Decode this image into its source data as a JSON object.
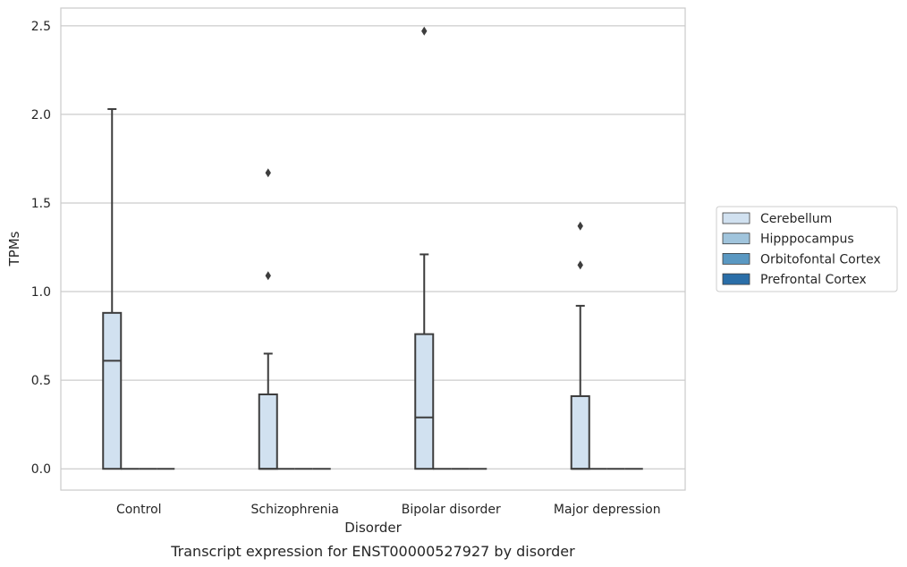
{
  "chart_data": {
    "type": "box",
    "caption": "Transcript expression for ENST00000527927 by disorder",
    "xlabel": "Disorder",
    "ylabel": "TPMs",
    "ylim": [
      -0.12,
      2.6
    ],
    "yticks": [
      0.0,
      0.5,
      1.0,
      1.5,
      2.0,
      2.5
    ],
    "ytick_labels": [
      "0.0",
      "0.5",
      "1.0",
      "1.5",
      "2.0",
      "2.5"
    ],
    "grid": "horizontal",
    "legend_position": "right",
    "categories": [
      "Control",
      "Schizophrenia",
      "Bipolar disorder",
      "Major depression"
    ],
    "series": [
      {
        "name": "Cerebellum",
        "color": "#d1e1f0",
        "boxes": [
          {
            "q1": 0.0,
            "median": 0.61,
            "q3": 0.88,
            "whisker_low": 0.0,
            "whisker_high": 2.03,
            "outliers": []
          },
          {
            "q1": 0.0,
            "median": 0.0,
            "q3": 0.42,
            "whisker_low": 0.0,
            "whisker_high": 0.65,
            "outliers": [
              1.09,
              1.67
            ]
          },
          {
            "q1": 0.0,
            "median": 0.29,
            "q3": 0.76,
            "whisker_low": 0.0,
            "whisker_high": 1.21,
            "outliers": [
              2.47
            ]
          },
          {
            "q1": 0.0,
            "median": 0.0,
            "q3": 0.41,
            "whisker_low": 0.0,
            "whisker_high": 0.92,
            "outliers": [
              1.15,
              1.37
            ]
          }
        ]
      },
      {
        "name": "Hipppocampus",
        "color": "#a0c4dc",
        "boxes": [
          {
            "q1": 0.0,
            "median": 0.0,
            "q3": 0.0,
            "whisker_low": 0.0,
            "whisker_high": 0.0,
            "outliers": []
          },
          {
            "q1": 0.0,
            "median": 0.0,
            "q3": 0.0,
            "whisker_low": 0.0,
            "whisker_high": 0.0,
            "outliers": []
          },
          {
            "q1": 0.0,
            "median": 0.0,
            "q3": 0.0,
            "whisker_low": 0.0,
            "whisker_high": 0.0,
            "outliers": []
          },
          {
            "q1": 0.0,
            "median": 0.0,
            "q3": 0.0,
            "whisker_low": 0.0,
            "whisker_high": 0.0,
            "outliers": []
          }
        ]
      },
      {
        "name": "Orbitofontal Cortex",
        "color": "#5a98c2",
        "boxes": [
          {
            "q1": 0.0,
            "median": 0.0,
            "q3": 0.0,
            "whisker_low": 0.0,
            "whisker_high": 0.0,
            "outliers": []
          },
          {
            "q1": 0.0,
            "median": 0.0,
            "q3": 0.0,
            "whisker_low": 0.0,
            "whisker_high": 0.0,
            "outliers": []
          },
          {
            "q1": 0.0,
            "median": 0.0,
            "q3": 0.0,
            "whisker_low": 0.0,
            "whisker_high": 0.0,
            "outliers": []
          },
          {
            "q1": 0.0,
            "median": 0.0,
            "q3": 0.0,
            "whisker_low": 0.0,
            "whisker_high": 0.0,
            "outliers": []
          }
        ]
      },
      {
        "name": "Prefrontal Cortex",
        "color": "#2a6ea8",
        "boxes": [
          {
            "q1": 0.0,
            "median": 0.0,
            "q3": 0.0,
            "whisker_low": 0.0,
            "whisker_high": 0.0,
            "outliers": []
          },
          {
            "q1": 0.0,
            "median": 0.0,
            "q3": 0.0,
            "whisker_low": 0.0,
            "whisker_high": 0.0,
            "outliers": []
          },
          {
            "q1": 0.0,
            "median": 0.0,
            "q3": 0.0,
            "whisker_low": 0.0,
            "whisker_high": 0.0,
            "outliers": []
          },
          {
            "q1": 0.0,
            "median": 0.0,
            "q3": 0.0,
            "whisker_low": 0.0,
            "whisker_high": 0.0,
            "outliers": []
          }
        ]
      }
    ]
  }
}
